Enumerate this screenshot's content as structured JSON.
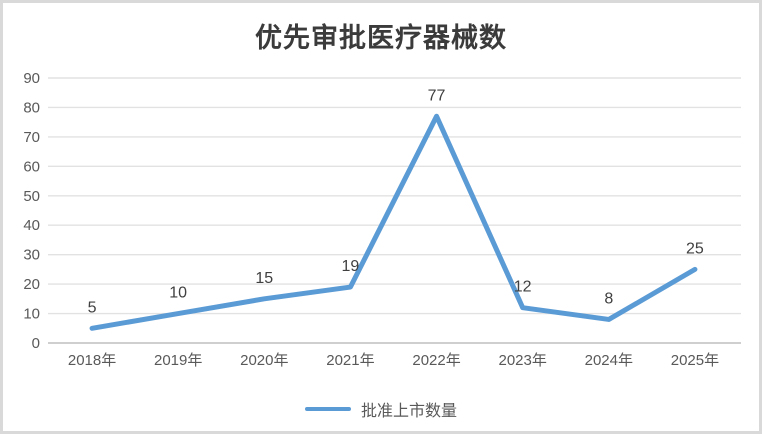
{
  "chart_data": {
    "type": "line",
    "title": "优先审批医疗器械数",
    "categories": [
      "2018年",
      "2019年",
      "2020年",
      "2021年",
      "2022年",
      "2023年",
      "2024年",
      "2025年"
    ],
    "series": [
      {
        "name": "批准上市数量",
        "values": [
          5,
          10,
          15,
          19,
          77,
          12,
          8,
          25
        ],
        "color": "#5b9bd5"
      }
    ],
    "ylim": [
      0,
      90
    ],
    "ytick_step": 10,
    "yticks": [
      0,
      10,
      20,
      30,
      40,
      50,
      60,
      70,
      80,
      90
    ],
    "grid": true,
    "grid_color": "#e2e2e2",
    "axis_line_color": "#bfbfbf",
    "tick_label_color": "#595959",
    "data_label_color": "#404040",
    "data_labels": true,
    "legend_position": "bottom"
  }
}
